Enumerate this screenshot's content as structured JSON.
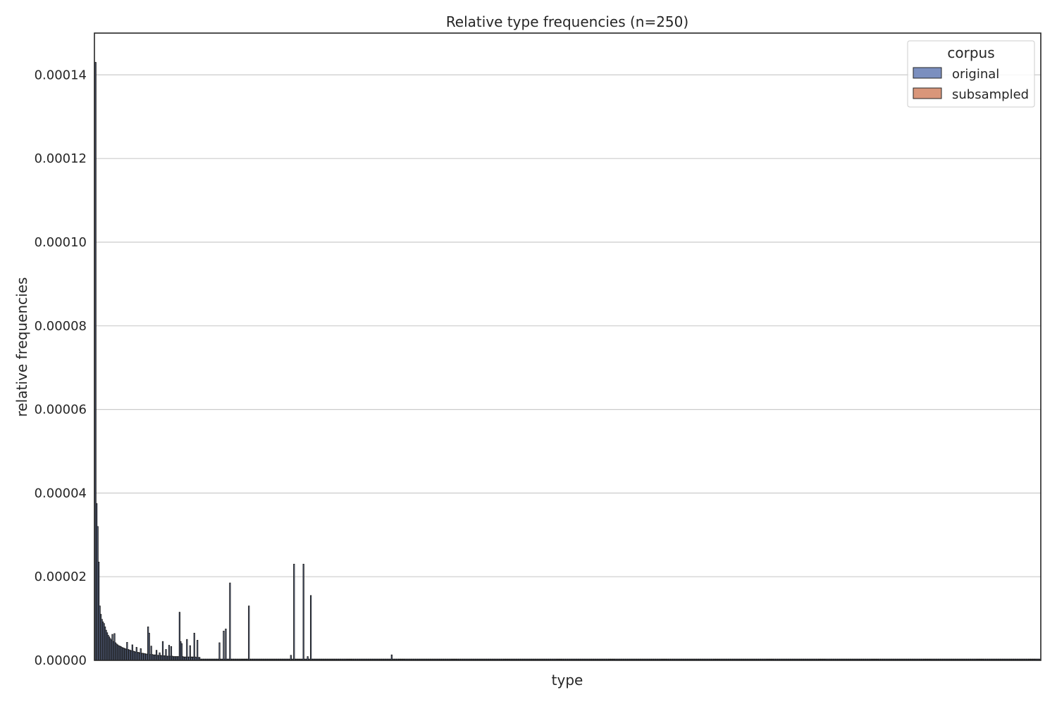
{
  "chart_data": {
    "type": "bar",
    "title": "Relative type frequencies (n=250)",
    "xlabel": "type",
    "ylabel": "relative frequencies",
    "ylim": [
      0,
      0.00015
    ],
    "yticks": [
      0,
      2e-05,
      4e-05,
      6e-05,
      8e-05,
      0.0001,
      0.00012,
      0.00014
    ],
    "ytick_labels": [
      "0.00000",
      "0.00002",
      "0.00004",
      "0.00006",
      "0.00008",
      "0.00010",
      "0.00012",
      "0.00014"
    ],
    "grid": "horizontal",
    "legend": {
      "title": "corpus",
      "placement": "top-right",
      "entries": [
        {
          "label": "original",
          "color": "#7b8fbf"
        },
        {
          "label": "subsampled",
          "color": "#d9967a"
        }
      ]
    },
    "x_count": 900,
    "series": [
      {
        "name": "original",
        "color": "#7b8fbf",
        "values": [
          0.000143,
          3.75e-05,
          3.2e-05,
          2.35e-05,
          1.3e-05,
          1.1e-05,
          9.8e-06,
          9.2e-06,
          8.8e-06,
          8e-06,
          7.2e-06,
          6.6e-06,
          6e-06,
          5.6e-06,
          5.2e-06,
          4.9e-06,
          6.2e-06,
          4.5e-06,
          6.4e-06,
          4.2e-06,
          3.9e-06,
          3.7e-06,
          3.5e-06,
          3.4e-06,
          3.3e-06,
          3.1e-06,
          3e-06,
          2.9e-06,
          2.8e-06,
          2.7e-06,
          4.3e-06,
          2.6e-06,
          2.5e-06,
          2.4e-06,
          2.3e-06,
          3.7e-06,
          2.2e-06,
          2.1e-06,
          2e-06,
          3.1e-06,
          1.9e-06,
          1.9e-06,
          1.8e-06,
          2.8e-06,
          1.7e-06,
          1.7e-06,
          1.6e-06,
          1.6e-06,
          1.5e-06,
          1.5e-06,
          8e-06,
          6.5e-06,
          1.4e-06,
          3.4e-06,
          1.4e-06,
          1.3e-06,
          1.3e-06,
          1.3e-06,
          2.4e-06,
          1.2e-06,
          1.2e-06,
          1.8e-06,
          1.2e-06,
          1.1e-06,
          4.5e-06,
          1.1e-06,
          1.1e-06,
          2.6e-06,
          1e-06,
          1e-06,
          3.6e-06,
          1e-06,
          3.3e-06,
          1e-06,
          9e-07,
          9e-07,
          9e-07,
          9e-07,
          9e-07,
          9e-07,
          1.15e-05,
          4.5e-06,
          4e-06,
          9e-07,
          8e-07,
          8e-07,
          8e-07,
          5e-06,
          8e-07,
          8e-07,
          3.5e-06,
          8e-07,
          8e-07,
          8e-07,
          6.5e-06,
          8e-07,
          7e-07,
          4.8e-06,
          7e-07,
          7e-07
        ]
      },
      {
        "name": "subsampled",
        "color": "#d9967a",
        "values": []
      }
    ],
    "tail": {
      "baseline_value": 3e-07,
      "spikes": [
        {
          "index": 118,
          "value": 4.2e-06
        },
        {
          "index": 122,
          "value": 7e-06
        },
        {
          "index": 124,
          "value": 7.5e-06
        },
        {
          "index": 128,
          "value": 1.85e-05
        },
        {
          "index": 146,
          "value": 1.3e-05
        },
        {
          "index": 186,
          "value": 1.2e-06
        },
        {
          "index": 189,
          "value": 2.3e-05
        },
        {
          "index": 198,
          "value": 2.3e-05
        },
        {
          "index": 202,
          "value": 9e-07
        },
        {
          "index": 205,
          "value": 1.55e-05
        },
        {
          "index": 282,
          "value": 1.3e-06
        }
      ]
    }
  }
}
